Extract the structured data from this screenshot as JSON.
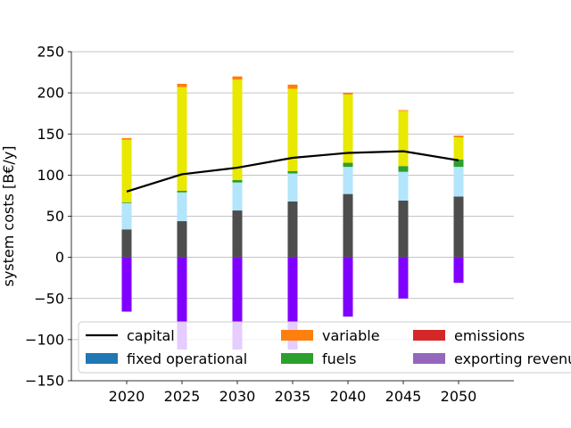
{
  "chart_data": {
    "type": "bar",
    "stacked": true,
    "ylabel": "system costs [B€/y]",
    "xlabel": "",
    "ylim": [
      -150,
      250
    ],
    "yticks": [
      -150,
      -100,
      -50,
      0,
      50,
      100,
      150,
      200,
      250
    ],
    "grid": "horizontal",
    "categories": [
      "2020",
      "2025",
      "2030",
      "2035",
      "2040",
      "2045",
      "2050"
    ],
    "series": [
      {
        "key": "dark",
        "color": "#4d4d4d",
        "values": [
          34,
          44,
          57,
          68,
          77,
          69,
          74
        ]
      },
      {
        "key": "lightblue",
        "color": "#b3e5fc",
        "values": [
          32,
          35,
          34,
          34,
          33,
          35,
          36
        ]
      },
      {
        "key": "fuels",
        "color": "#2ca02c",
        "values": [
          1,
          2,
          3,
          3,
          5,
          7,
          9
        ]
      },
      {
        "key": "yellow",
        "color": "#e8e800",
        "values": [
          76,
          126,
          122,
          100,
          83,
          67,
          27
        ]
      },
      {
        "key": "variable",
        "color": "#ff7f0e",
        "values": [
          2,
          4,
          4,
          5,
          2,
          1,
          2
        ]
      },
      {
        "key": "exporting",
        "color": "#8000ff",
        "values": [
          -66,
          -112,
          -112,
          -112,
          -72,
          -50,
          -31
        ]
      }
    ],
    "line": {
      "name": "capital",
      "color": "#000000",
      "values": [
        80,
        101,
        109,
        121,
        127,
        129,
        118
      ]
    },
    "legend": {
      "placement": "lower-center",
      "entries": [
        {
          "label": "capital",
          "type": "line",
          "color": "#000000"
        },
        {
          "label": "fixed operational",
          "type": "patch",
          "color": "#1f77b4"
        },
        {
          "label": "variable",
          "type": "patch",
          "color": "#ff7f0e"
        },
        {
          "label": "fuels",
          "type": "patch",
          "color": "#2ca02c"
        },
        {
          "label": "emissions",
          "type": "patch",
          "color": "#d62728"
        },
        {
          "label": "exporting revenues",
          "type": "patch",
          "color": "#9467bd"
        }
      ]
    }
  }
}
